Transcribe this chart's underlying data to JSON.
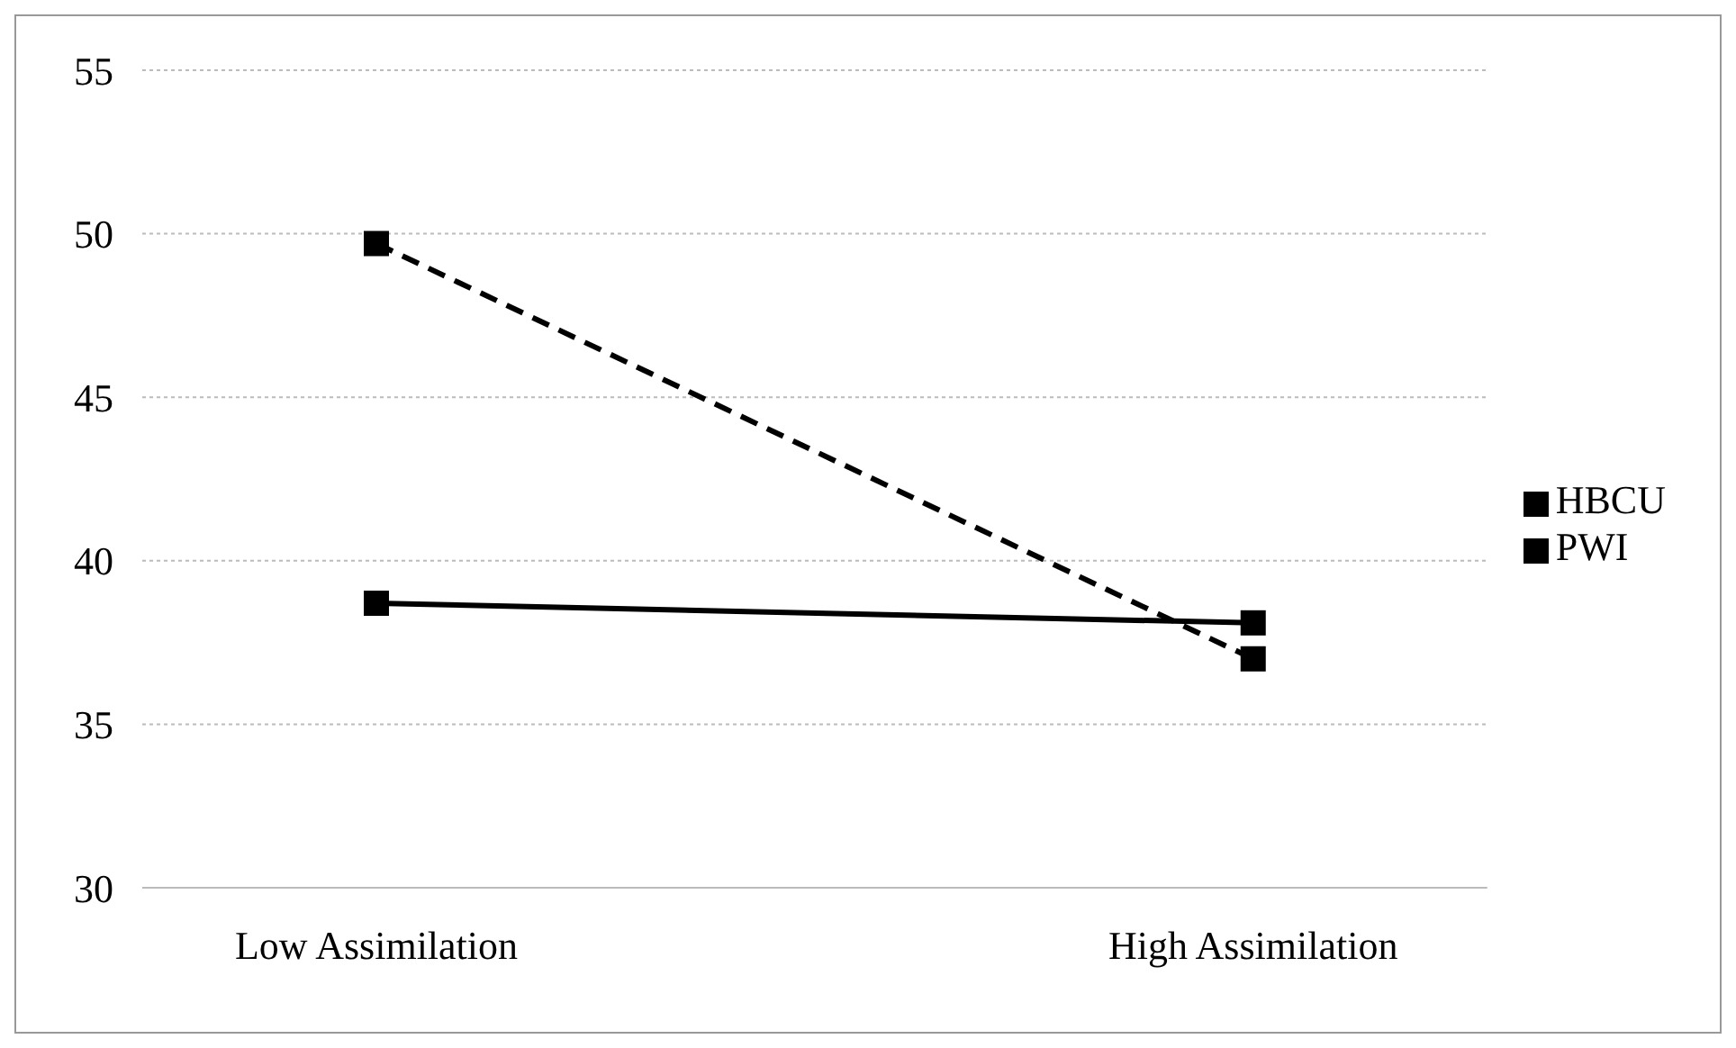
{
  "chart_data": {
    "type": "line",
    "categories": [
      "Low Assimilation",
      "High Assimilation"
    ],
    "series": [
      {
        "name": "PWI",
        "color": "#000000",
        "values": [
          49.7,
          37.0
        ],
        "line_style": "dashed"
      },
      {
        "name": "HBCU",
        "color": "#000000",
        "values": [
          38.7,
          38.1
        ],
        "line_style": "solid"
      }
    ],
    "ylim": [
      30,
      55
    ],
    "yticks": [
      30,
      35,
      40,
      45,
      50,
      55
    ],
    "grid": "y",
    "legend": "right",
    "marker": "square"
  }
}
